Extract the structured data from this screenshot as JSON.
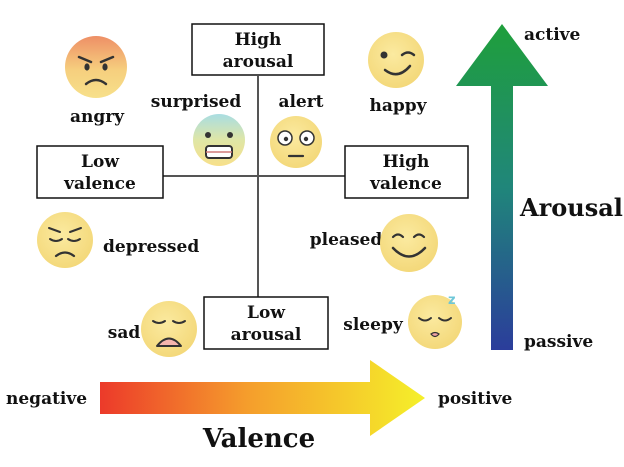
{
  "boxes": {
    "high_arousal": [
      "High",
      "arousal"
    ],
    "low_arousal": [
      "Low",
      "arousal"
    ],
    "low_valence": [
      "Low",
      "valence"
    ],
    "high_valence": [
      "High",
      "valence"
    ]
  },
  "emotions": {
    "angry": "angry",
    "surprised": "surprised",
    "alert": "alert",
    "happy": "happy",
    "depressed": "depressed",
    "pleased": "pleased",
    "sad": "sad",
    "sleepy": "sleepy"
  },
  "sleepy_mark": "z",
  "arousal_axis": {
    "title": "Arousal",
    "top": "active",
    "bottom": "passive"
  },
  "valence_axis": {
    "title": "Valence",
    "left": "negative",
    "right": "positive"
  },
  "colors": {
    "arousal_top": "#1e9e3a",
    "arousal_bottom": "#2a3f9a",
    "valence_left": "#ee3b2a",
    "valence_right": "#f4ef2a",
    "face": "#f7e08a",
    "angry_face_top": "#ef9a6b"
  }
}
